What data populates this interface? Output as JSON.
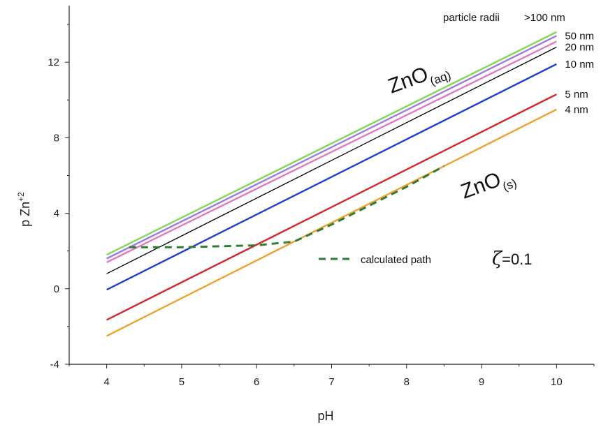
{
  "chart_data": {
    "type": "line",
    "title": "",
    "xlabel": "pH",
    "ylabel": "p Zn",
    "ylabel_superscript": "+2",
    "xlim": [
      3.5,
      10.5
    ],
    "ylim": [
      -4,
      15
    ],
    "xticks": [
      4,
      5,
      6,
      7,
      8,
      9,
      10
    ],
    "yticks": [
      -4,
      0,
      4,
      8,
      12
    ],
    "grid": false,
    "legend_title": "particle radii",
    "series": [
      {
        "name": ">100 nm",
        "color": "#7ed957",
        "x": [
          4,
          10
        ],
        "y": [
          1.8,
          13.6
        ]
      },
      {
        "name": "50 nm",
        "color": "#a07ad8",
        "x": [
          4,
          10
        ],
        "y": [
          1.6,
          13.4
        ]
      },
      {
        "name": "",
        "color": "#e377c2",
        "x": [
          4,
          10
        ],
        "y": [
          1.4,
          13.1
        ]
      },
      {
        "name": "20 nm",
        "color": "#000000",
        "x": [
          4,
          10
        ],
        "y": [
          0.8,
          12.8
        ]
      },
      {
        "name": "10 nm",
        "color": "#1f3fd1",
        "x": [
          4,
          10
        ],
        "y": [
          -0.05,
          11.9
        ]
      },
      {
        "name": "5 nm",
        "color": "#d62728",
        "x": [
          4,
          10
        ],
        "y": [
          -1.65,
          10.3
        ]
      },
      {
        "name": "4 nm",
        "color": "#f0a030",
        "x": [
          4,
          10
        ],
        "y": [
          -2.5,
          9.5
        ]
      }
    ],
    "calculated_path": {
      "name": "calculated path",
      "color": "#2e7d32",
      "dashed": true,
      "x": [
        4.3,
        4.6,
        5.0,
        5.5,
        6.0,
        6.5,
        7.0,
        7.5,
        8.0,
        8.5
      ],
      "y": [
        2.2,
        2.2,
        2.2,
        2.25,
        2.3,
        2.5,
        3.4,
        4.4,
        5.4,
        6.5
      ]
    },
    "annotations": {
      "aq": {
        "main": "ZnO",
        "sub": "(aq)"
      },
      "s": {
        "main": "ZnO",
        "sub": "(s)"
      },
      "zeta": {
        "symbol": "ζ",
        "text": "=0.1"
      }
    }
  }
}
